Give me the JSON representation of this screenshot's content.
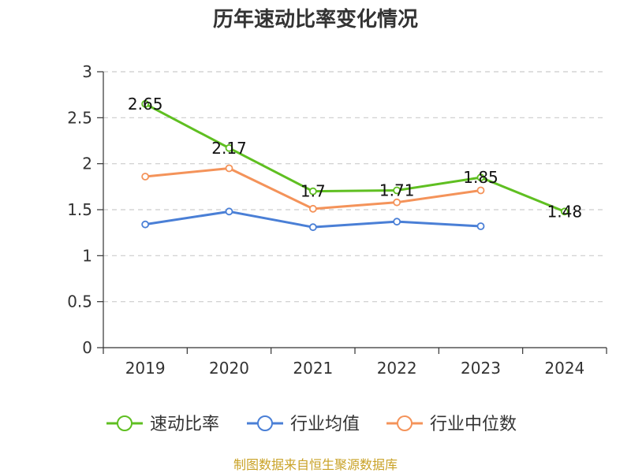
{
  "chart_data": {
    "type": "line",
    "title": "历年速动比率变化情况",
    "categories": [
      "2019",
      "2020",
      "2021",
      "2022",
      "2023",
      "2024"
    ],
    "ylim": [
      0,
      3
    ],
    "yticks": [
      "0",
      "0.5",
      "1",
      "1.5",
      "2",
      "2.5",
      "3"
    ],
    "grid": true,
    "legend_position": "bottom",
    "series": [
      {
        "name": "速动比率",
        "color": "#5fbf21",
        "values": [
          2.65,
          2.17,
          1.7,
          1.71,
          1.85,
          1.48
        ],
        "labels": [
          "2.65",
          "2.17",
          "1.7",
          "1.71",
          "1.85",
          "1.48"
        ]
      },
      {
        "name": "行业均值",
        "color": "#4a7fd6",
        "values": [
          1.34,
          1.48,
          1.31,
          1.37,
          1.32,
          null
        ]
      },
      {
        "name": "行业中位数",
        "color": "#f4935a",
        "values": [
          1.86,
          1.95,
          1.51,
          1.58,
          1.71,
          null
        ]
      }
    ],
    "source": "制图数据来自恒生聚源数据库"
  }
}
